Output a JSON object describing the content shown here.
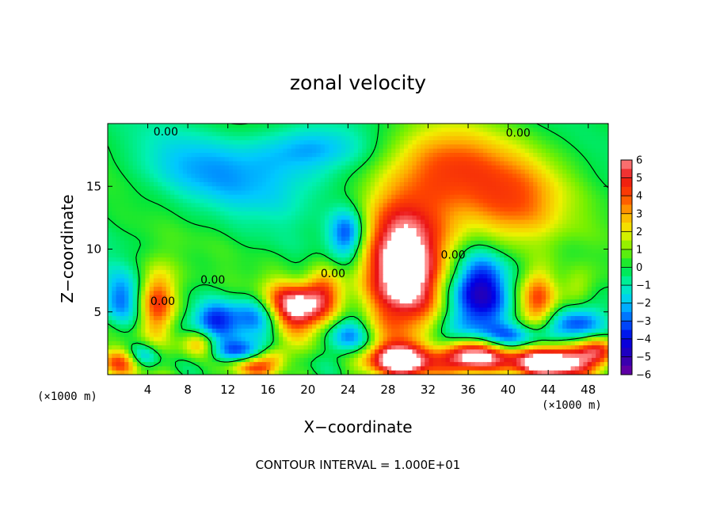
{
  "chart_data": {
    "type": "heatmap",
    "title": "zonal velocity",
    "xlabel": "X−coordinate",
    "ylabel": "Z−coordinate",
    "x_unit_left": "(×1000 m)",
    "x_unit_right": "(×1000 m)",
    "xlim": [
      0,
      50
    ],
    "ylim": [
      0,
      20
    ],
    "x_ticks": [
      4,
      8,
      12,
      16,
      20,
      24,
      28,
      32,
      36,
      40,
      44,
      48
    ],
    "y_ticks": [
      5,
      10,
      15
    ],
    "colorbar": {
      "range": [
        -6,
        6
      ],
      "ticks": [
        6,
        5,
        4,
        3,
        2,
        1,
        0,
        -1,
        -2,
        -3,
        -4,
        -5,
        -6
      ],
      "tick_labels": [
        "6",
        "5",
        "4",
        "3",
        "2",
        "1",
        "0",
        "−1",
        "−2",
        "−3",
        "−4",
        "−5",
        "−6"
      ]
    },
    "contour_labels": [
      {
        "text": "0.00",
        "x": 5.8,
        "y": 19.3
      },
      {
        "text": "0.00",
        "x": 41.0,
        "y": 19.2
      },
      {
        "text": "0.00",
        "x": 10.5,
        "y": 7.5
      },
      {
        "text": "0.00",
        "x": 5.5,
        "y": 5.8
      },
      {
        "text": "0.00",
        "x": 22.5,
        "y": 8.0
      },
      {
        "text": "0.00",
        "x": 34.5,
        "y": 9.5
      }
    ],
    "features": [
      {
        "kind": "max",
        "x": 29.5,
        "y": 8.0,
        "sx": 2.8,
        "sy": 3.6,
        "amp": 8
      },
      {
        "kind": "max",
        "x": 36.0,
        "y": 14.5,
        "sx": 6.0,
        "sy": 3.0,
        "amp": 3.2
      },
      {
        "kind": "max",
        "x": 33.0,
        "y": 17.0,
        "sx": 4.0,
        "sy": 2.0,
        "amp": 2.0
      },
      {
        "kind": "max",
        "x": 41.0,
        "y": 13.0,
        "sx": 3.0,
        "sy": 2.5,
        "amp": 1.8
      },
      {
        "kind": "max",
        "x": 18.5,
        "y": 5.5,
        "sx": 2.2,
        "sy": 1.6,
        "amp": 7
      },
      {
        "kind": "max",
        "x": 21.5,
        "y": 6.8,
        "sx": 1.5,
        "sy": 1.5,
        "amp": 3.5
      },
      {
        "kind": "max",
        "x": 5.0,
        "y": 5.8,
        "sx": 1.4,
        "sy": 2.0,
        "amp": 5
      },
      {
        "kind": "max",
        "x": 43.0,
        "y": 6.0,
        "sx": 1.3,
        "sy": 1.8,
        "amp": 4.5
      },
      {
        "kind": "max",
        "x": 47.0,
        "y": 7.0,
        "sx": 1.2,
        "sy": 1.2,
        "amp": 2.0
      },
      {
        "kind": "max",
        "x": 36.0,
        "y": 1.4,
        "sx": 2.8,
        "sy": 1.0,
        "amp": 8
      },
      {
        "kind": "max",
        "x": 29.5,
        "y": 1.2,
        "sx": 2.5,
        "sy": 0.9,
        "amp": 7
      },
      {
        "kind": "max",
        "x": 44.5,
        "y": 1.0,
        "sx": 3.0,
        "sy": 0.9,
        "amp": 8
      },
      {
        "kind": "max",
        "x": 14.5,
        "y": 0.5,
        "sx": 2.0,
        "sy": 0.6,
        "amp": 4
      },
      {
        "kind": "max",
        "x": 1.5,
        "y": 1.0,
        "sx": 1.5,
        "sy": 0.8,
        "amp": 4
      },
      {
        "kind": "max",
        "x": 9.0,
        "y": 2.5,
        "sx": 1.2,
        "sy": 0.8,
        "amp": 3
      },
      {
        "kind": "max",
        "x": 16.5,
        "y": 1.5,
        "sx": 1.2,
        "sy": 0.6,
        "amp": 3
      },
      {
        "kind": "max",
        "x": 49.0,
        "y": 2.0,
        "sx": 1.2,
        "sy": 0.8,
        "amp": 4
      },
      {
        "kind": "min",
        "x": 37.0,
        "y": 6.5,
        "sx": 2.2,
        "sy": 2.4,
        "amp": 5.5
      },
      {
        "kind": "min",
        "x": 24.0,
        "y": 11.3,
        "sx": 1.3,
        "sy": 1.5,
        "amp": 4
      },
      {
        "kind": "min",
        "x": 15.0,
        "y": 4.5,
        "sx": 2.0,
        "sy": 1.3,
        "amp": 4
      },
      {
        "kind": "min",
        "x": 10.5,
        "y": 4.3,
        "sx": 1.5,
        "sy": 1.0,
        "amp": 3.2
      },
      {
        "kind": "min",
        "x": 1.5,
        "y": 6.0,
        "sx": 1.6,
        "sy": 1.5,
        "amp": 2.8
      },
      {
        "kind": "min",
        "x": 3.5,
        "y": 1.5,
        "sx": 1.2,
        "sy": 0.7,
        "amp": 3
      },
      {
        "kind": "min",
        "x": 24.0,
        "y": 3.0,
        "sx": 1.5,
        "sy": 1.2,
        "amp": 3.5
      },
      {
        "kind": "min",
        "x": 33.0,
        "y": 2.0,
        "sx": 1.5,
        "sy": 1.0,
        "amp": 3.5
      },
      {
        "kind": "min",
        "x": 41.0,
        "y": 3.0,
        "sx": 2.5,
        "sy": 0.8,
        "amp": 3.5
      },
      {
        "kind": "min",
        "x": 46.5,
        "y": 4.0,
        "sx": 2.0,
        "sy": 1.0,
        "amp": 3
      },
      {
        "kind": "min",
        "x": 13.0,
        "y": 1.8,
        "sx": 2.0,
        "sy": 0.6,
        "amp": 2.5
      },
      {
        "kind": "min",
        "x": 16.0,
        "y": 15.5,
        "sx": 6.0,
        "sy": 2.0,
        "amp": 1.8
      },
      {
        "kind": "min",
        "x": 20.0,
        "y": 18.0,
        "sx": 4.0,
        "sy": 1.2,
        "amp": 2.0
      },
      {
        "kind": "min",
        "x": 8.0,
        "y": 17.0,
        "sx": 4.0,
        "sy": 2.0,
        "amp": 1.2
      },
      {
        "kind": "min",
        "x": 19.5,
        "y": 7.5,
        "sx": 1.8,
        "sy": 1.0,
        "amp": 2.0
      }
    ]
  },
  "footer": {
    "contour_interval": "CONTOUR INTERVAL = 1.000E+01"
  }
}
